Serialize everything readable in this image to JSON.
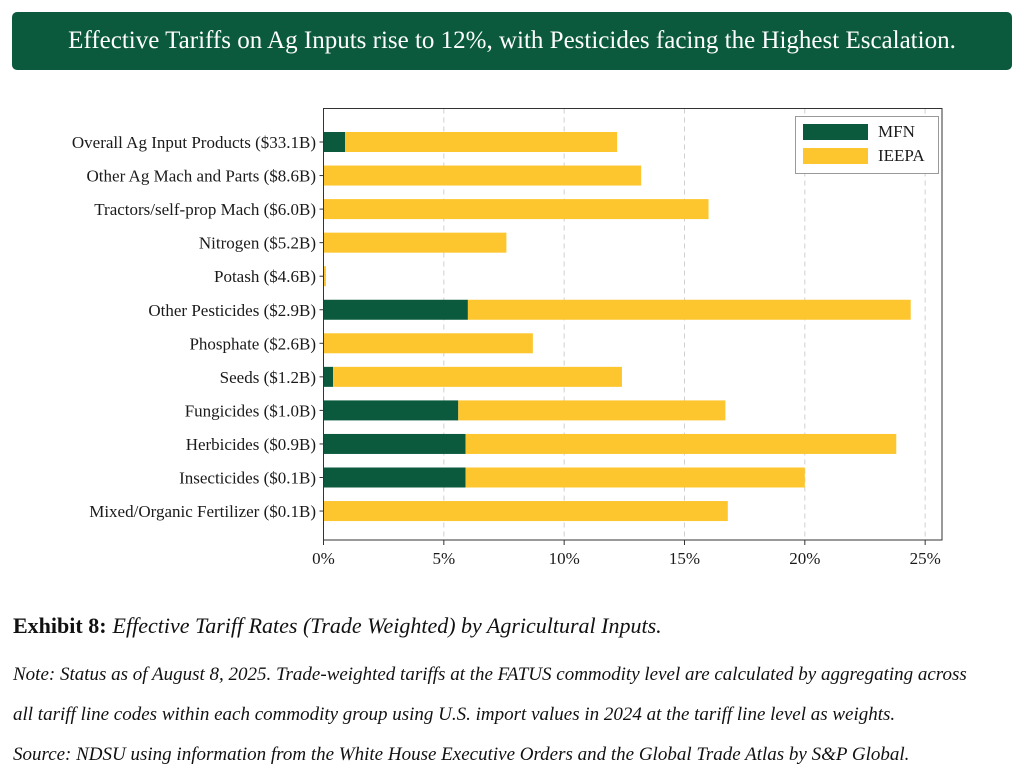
{
  "banner_color": "#0b5a3d",
  "chart_data": {
    "type": "bar",
    "orientation": "horizontal",
    "stacked": true,
    "title": "Effective Tariffs on Ag Inputs rise to 12%, with Pesticides facing the Highest Escalation.",
    "xlabel": "",
    "ylabel": "",
    "categories": [
      "Overall Ag Input Products ($33.1B)",
      "Other Ag Mach and Parts ($8.6B)",
      "Tractors/self-prop Mach ($6.0B)",
      "Nitrogen ($5.2B)",
      "Potash ($4.6B)",
      "Other Pesticides ($2.9B)",
      "Phosphate ($2.6B)",
      "Seeds ($1.2B)",
      "Fungicides ($1.0B)",
      "Herbicides ($0.9B)",
      "Insecticides ($0.1B)",
      "Mixed/Organic Fertilizer ($0.1B)"
    ],
    "series": [
      {
        "name": "MFN",
        "color": "#0b5a3d",
        "values": [
          0.9,
          0,
          0,
          0,
          0,
          6.0,
          0,
          0.4,
          5.6,
          5.9,
          5.9,
          0
        ]
      },
      {
        "name": "IEEPA",
        "color": "#fdc62e",
        "values": [
          11.3,
          13.2,
          16.0,
          7.6,
          0.1,
          18.4,
          8.7,
          12.0,
          11.1,
          17.9,
          14.1,
          16.8
        ]
      }
    ],
    "x_ticks": [
      0,
      5,
      10,
      15,
      20,
      25
    ],
    "x_tick_labels": [
      "0%",
      "5%",
      "10%",
      "15%",
      "20%",
      "25%"
    ],
    "xlim": [
      0,
      25.7
    ],
    "grid": true,
    "legend": "top-right"
  },
  "caption": {
    "label": "Exhibit 8:",
    "text": "Effective Tariff Rates (Trade Weighted) by Agricultural Inputs."
  },
  "notes": {
    "lines": [
      "Note: Status as of August 8, 2025. Trade-weighted tariffs at the FATUS commodity level are calculated by aggregating across",
      "all tariff line codes within each commodity group using U.S. import values in 2024 at the tariff line level as weights."
    ],
    "source": "Source: NDSU using information from the White House Executive Orders and the Global Trade Atlas by S&P Global."
  }
}
